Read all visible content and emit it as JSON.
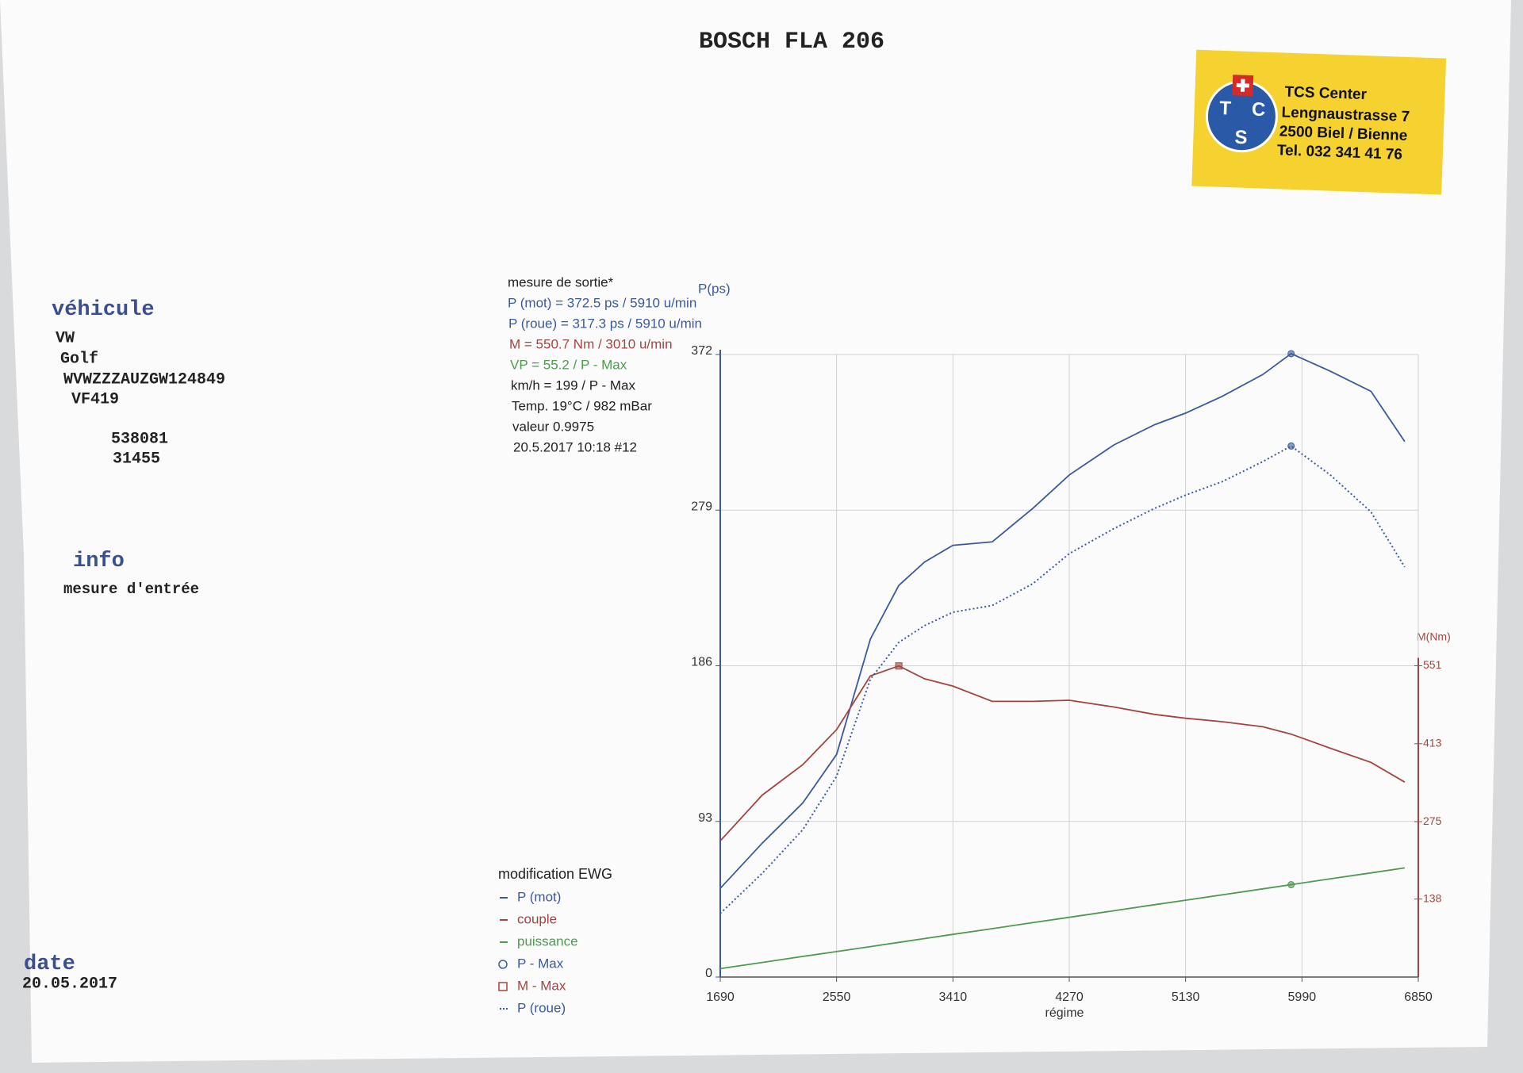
{
  "header": {
    "title": "BOSCH FLA 206"
  },
  "badge": {
    "logo": [
      "T",
      "C",
      "S"
    ],
    "lines": [
      "TCS Center",
      "Lengnaustrasse 7",
      "2500 Biel / Bienne",
      "Tel. 032 341 41 76"
    ]
  },
  "vehicle": {
    "heading": "véhicule",
    "lines": [
      "VW",
      "Golf",
      "WVWZZZAUZGW124849",
      "VF419",
      "538081",
      "31455"
    ]
  },
  "info": {
    "heading": "info",
    "lines": [
      "mesure d'entrée"
    ]
  },
  "date": {
    "heading": "date",
    "value": "20.05.2017"
  },
  "chart_data": {
    "type": "line",
    "readout_title": "mesure de sortie*",
    "readout": [
      {
        "text": "P (mot) = 372.5 ps / 5910 u/min",
        "color": "#3a5a9c"
      },
      {
        "text": "P (roue) = 317.3 ps / 5910 u/min",
        "color": "#3a5a9c"
      },
      {
        "text": "M = 550.7 Nm / 3010 u/min",
        "color": "#a5443f"
      },
      {
        "text": "VP = 55.2 / P - Max",
        "color": "#4f9a4f"
      },
      {
        "text": "km/h = 199 / P - Max",
        "color": "#222222"
      },
      {
        "text": "Temp. 19°C / 982 mBar",
        "color": "#222222"
      },
      {
        "text": "valeur 0.9975",
        "color": "#222222"
      },
      {
        "text": "20.5.2017 10:18  #12",
        "color": "#222222"
      }
    ],
    "legend_title": "modification EWG",
    "ylabel": "P(ps)",
    "y2label": "M(Nm)",
    "xlabel": "régime",
    "x": [
      1690,
      2000,
      2300,
      2550,
      2800,
      3010,
      3200,
      3410,
      3700,
      4000,
      4270,
      4600,
      4900,
      5130,
      5400,
      5700,
      5910,
      6200,
      6500,
      6750
    ],
    "series": [
      {
        "name": "P (mot)",
        "color": "#3a5a9c",
        "style": "solid",
        "marker": "P - Max",
        "values": [
          53,
          80,
          104,
          133,
          202,
          234,
          248,
          258,
          260,
          280,
          300,
          318,
          330,
          337,
          347,
          360,
          372.5,
          362,
          350,
          320
        ]
      },
      {
        "name": "couple",
        "color": "#a5443f",
        "style": "solid",
        "axis": "y2",
        "marker": "M - Max",
        "values": [
          241,
          322,
          376,
          438,
          533,
          550.7,
          528,
          515,
          488,
          488,
          490,
          478,
          465,
          458,
          452,
          443,
          430,
          405,
          380,
          345
        ]
      },
      {
        "name": "puissance",
        "color": "#4f9a4f",
        "style": "solid",
        "marker": "P - Max",
        "values": [
          5,
          8.7,
          12.3,
          15.2,
          18.2,
          20.7,
          23.0,
          25.5,
          28.9,
          32.5,
          35.7,
          39.6,
          43.2,
          45.9,
          49.1,
          52.7,
          55.2,
          58.7,
          62.2,
          65.2
        ]
      },
      {
        "name": "P (roue)",
        "color": "#3a5a9c",
        "style": "dotted",
        "marker": "P - Max",
        "values": [
          38,
          62,
          88,
          120,
          178,
          200,
          210,
          218,
          222,
          235,
          253,
          268,
          280,
          288,
          296,
          308,
          317.3,
          300,
          278,
          245
        ]
      }
    ],
    "markers": [
      {
        "name": "P - Max",
        "shape": "circle",
        "x": 5910
      },
      {
        "name": "M - Max",
        "shape": "square",
        "x": 3010
      }
    ],
    "xlim": [
      1690,
      6850
    ],
    "xticks": [
      1690,
      2550,
      3410,
      4270,
      5130,
      5990,
      6850
    ],
    "ylim": [
      0,
      372
    ],
    "yticks": [
      0,
      93,
      186,
      279,
      372
    ],
    "y2lim": [
      0,
      1102
    ],
    "y2ticks": [
      138,
      275,
      413,
      551
    ],
    "grid": true
  }
}
